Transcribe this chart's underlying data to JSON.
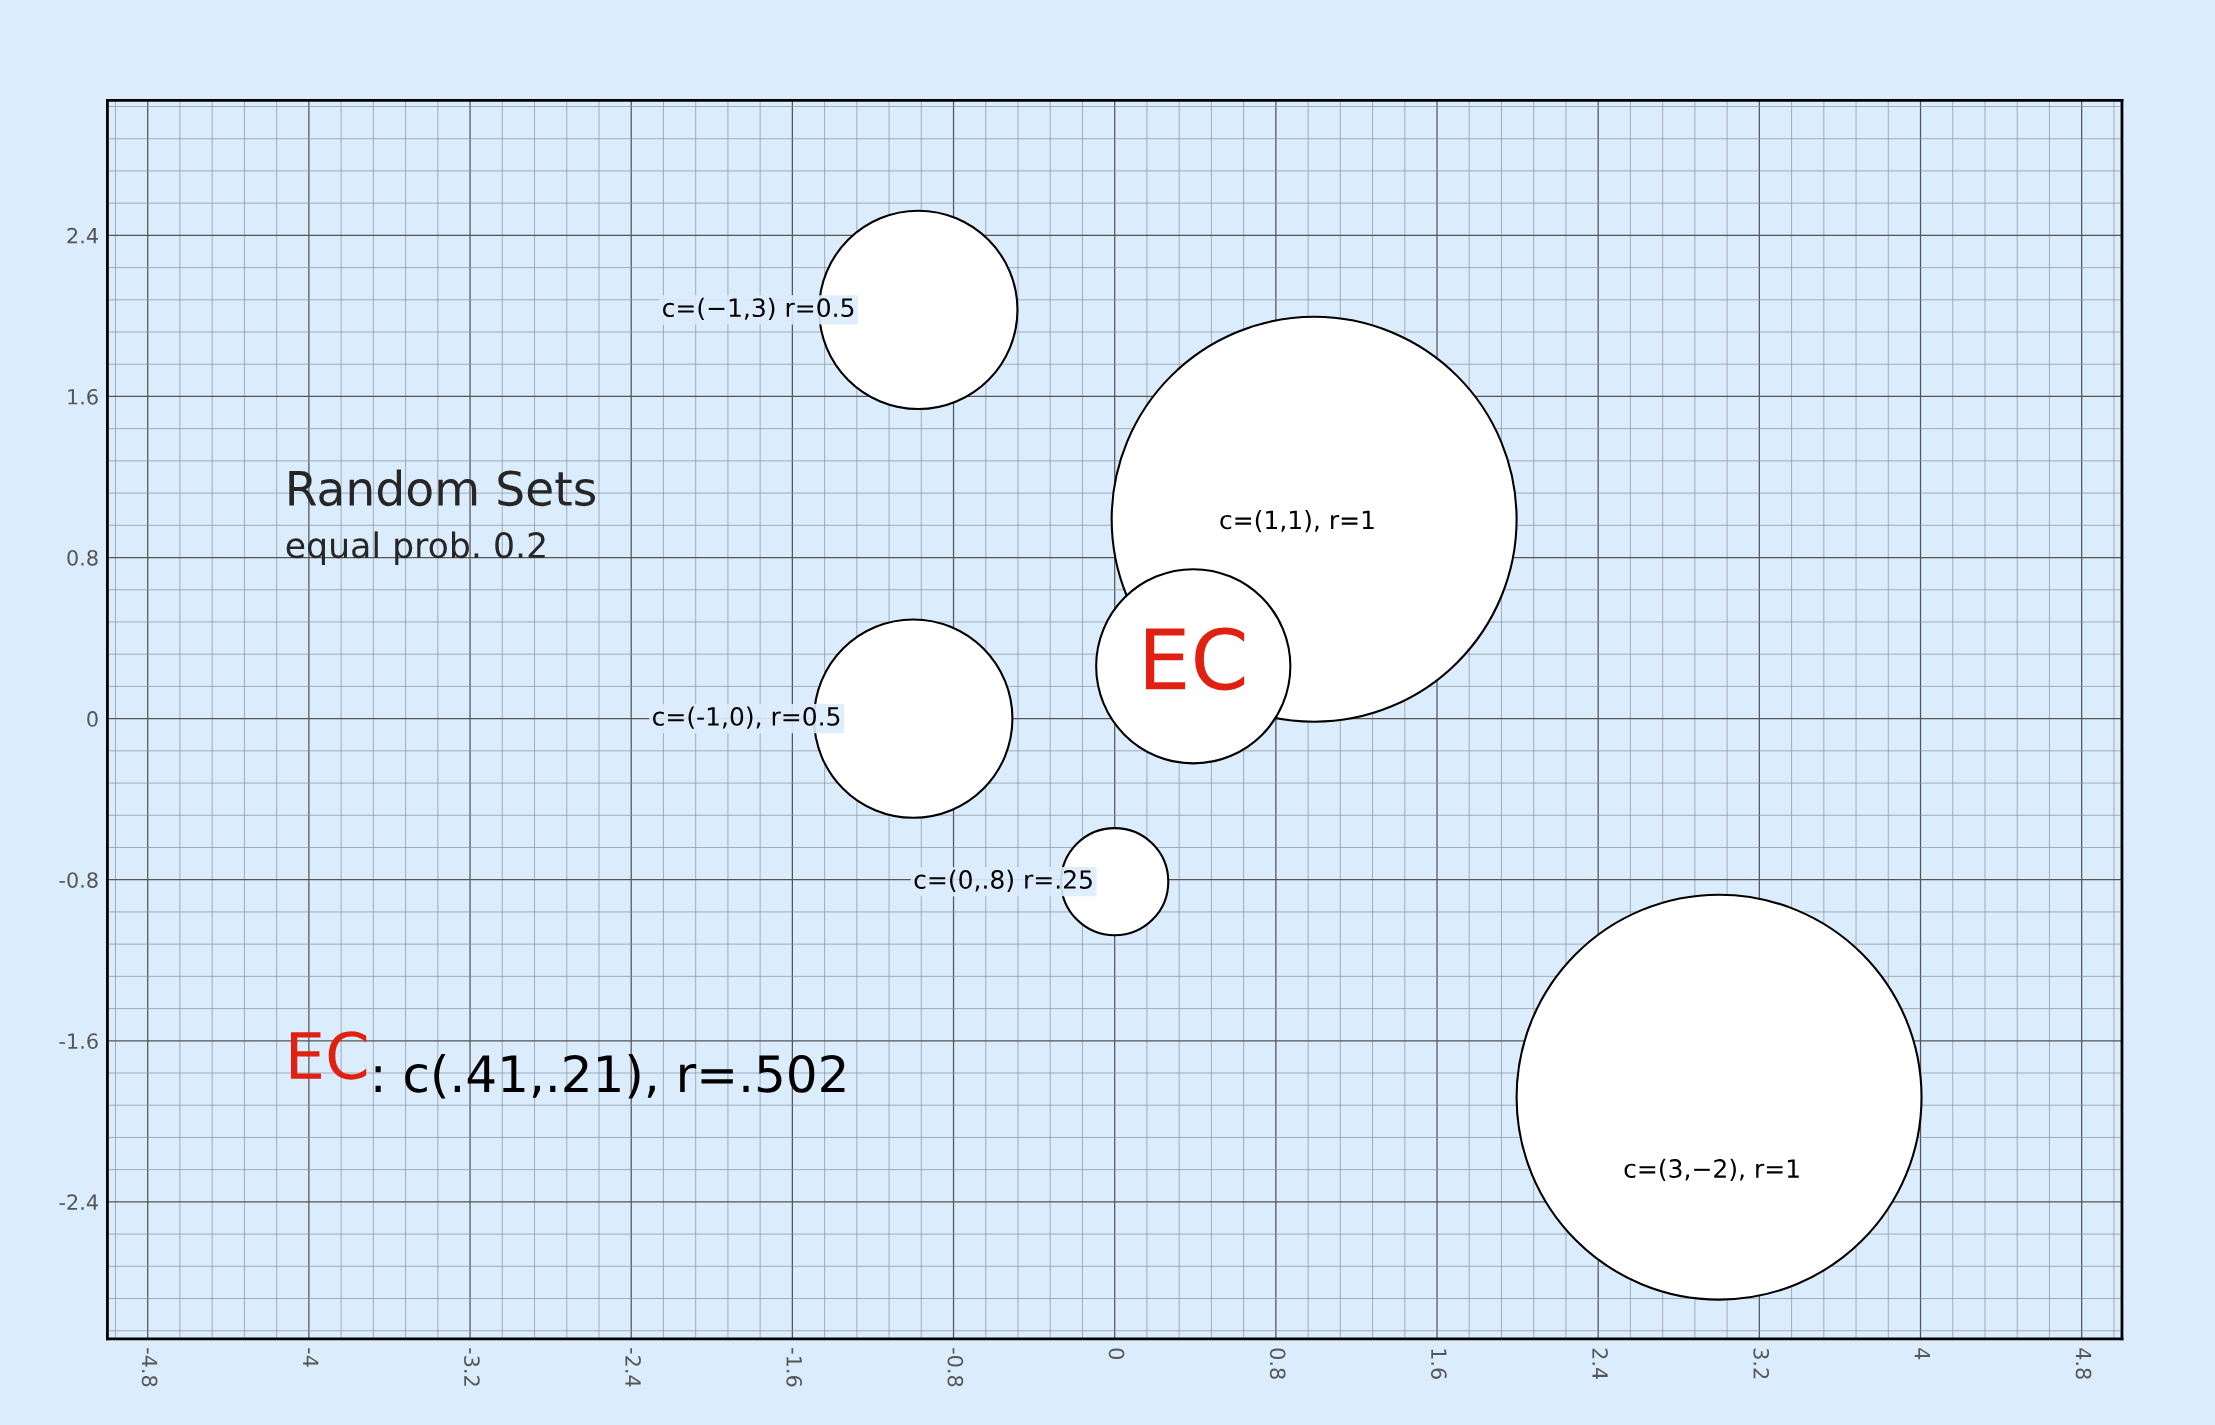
{
  "chart_data": {
    "type": "bubble",
    "title": "Random Sets",
    "subtitle": "equal prob. 0.2",
    "x": [
      -0.975,
      0.99,
      0.39,
      -1.0,
      0.0,
      3.0
    ],
    "values": [
      2.03,
      0.99,
      0.26,
      0.0,
      -0.81,
      -1.88
    ],
    "sizes": [
      0.24,
      1,
      0.23,
      0.24,
      0.07,
      1
    ],
    "color": "#ffffff",
    "xlim": [
      -5.0,
      5.0
    ],
    "ylim": [
      -3.08,
      3.07
    ],
    "xticks": [
      -4.8,
      -4,
      -3.2,
      -2.4,
      -1.6,
      -0.8,
      0,
      0.8,
      1.6,
      2.4,
      3.2,
      4,
      4.8
    ],
    "yticks": [
      -2.4,
      -1.6,
      -0.8,
      0,
      0.8,
      1.6,
      2.4
    ],
    "grid": true,
    "annotations": [
      "c=(−1,3) r=0.5",
      "c=(1,1), r=1",
      "EC",
      "c=(-1,0), r=0.5",
      "c=(0,.8) r=.25",
      "c=(3,−2), r=1",
      "EC",
      ": c(.41,.21), r=.502"
    ]
  }
}
